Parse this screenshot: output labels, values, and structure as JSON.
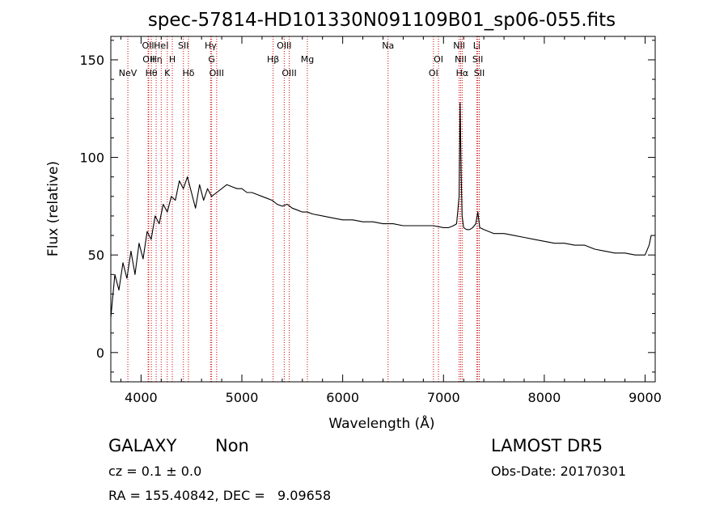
{
  "chart_data": {
    "type": "line",
    "title": "spec-57814-HD101330N091109B01_sp06-055.fits",
    "xlabel": "Wavelength (Å)",
    "ylabel": "Flux (relative)",
    "xlim": [
      3700,
      9100
    ],
    "ylim": [
      -15,
      162
    ],
    "x_ticks": [
      4000,
      5000,
      6000,
      7000,
      8000,
      9000
    ],
    "y_ticks": [
      0,
      50,
      100,
      150
    ],
    "grid": false,
    "series": [
      {
        "color": "#000000",
        "x": [
          3700,
          3740,
          3780,
          3820,
          3860,
          3900,
          3940,
          3980,
          4020,
          4060,
          4100,
          4140,
          4180,
          4220,
          4260,
          4300,
          4340,
          4380,
          4420,
          4460,
          4500,
          4540,
          4580,
          4620,
          4660,
          4700,
          4750,
          4800,
          4850,
          4900,
          4950,
          5000,
          5050,
          5100,
          5150,
          5200,
          5250,
          5300,
          5350,
          5400,
          5450,
          5500,
          5550,
          5600,
          5650,
          5700,
          5800,
          5900,
          6000,
          6100,
          6200,
          6300,
          6400,
          6500,
          6600,
          6700,
          6800,
          6900,
          7000,
          7050,
          7100,
          7130,
          7155,
          7165,
          7175,
          7185,
          7200,
          7230,
          7260,
          7290,
          7320,
          7340,
          7360,
          7400,
          7500,
          7600,
          7700,
          7800,
          7900,
          8000,
          8100,
          8200,
          8300,
          8400,
          8500,
          8600,
          8700,
          8800,
          8900,
          8950,
          9000,
          9040,
          9060,
          9070
        ],
        "y": [
          18,
          40,
          32,
          46,
          38,
          52,
          40,
          56,
          48,
          62,
          58,
          70,
          66,
          76,
          72,
          80,
          78,
          88,
          84,
          90,
          82,
          74,
          86,
          78,
          84,
          80,
          82,
          84,
          86,
          85,
          84,
          84,
          82,
          82,
          81,
          80,
          79,
          78,
          76,
          75,
          76,
          74,
          73,
          72,
          72,
          71,
          70,
          69,
          68,
          68,
          67,
          67,
          66,
          66,
          65,
          65,
          65,
          65,
          64,
          64,
          65,
          66,
          80,
          128,
          92,
          70,
          64,
          63,
          63,
          64,
          66,
          72,
          64,
          63,
          61,
          61,
          60,
          59,
          58,
          57,
          56,
          56,
          55,
          55,
          53,
          52,
          51,
          51,
          50,
          50,
          50,
          55,
          60,
          60
        ]
      }
    ],
    "lines": [
      {
        "w": 3869,
        "label": "NeV",
        "row": 2
      },
      {
        "w": 4070,
        "label": "OII",
        "row": 0
      },
      {
        "w": 4076,
        "label": "OII",
        "row": 1
      },
      {
        "w": 4102,
        "label": "Hθ",
        "row": 2
      },
      {
        "w": 4150,
        "label": "Hη",
        "row": 1
      },
      {
        "w": 4200,
        "label": "HeI",
        "row": 0
      },
      {
        "w": 4260,
        "label": "K",
        "row": 2
      },
      {
        "w": 4310,
        "label": "H",
        "row": 1
      },
      {
        "w": 4420,
        "label": "SII",
        "row": 0
      },
      {
        "w": 4470,
        "label": "Hδ",
        "row": 2
      },
      {
        "w": 4690,
        "label": "Hγ",
        "row": 0
      },
      {
        "w": 4700,
        "label": "G",
        "row": 1
      },
      {
        "w": 4750,
        "label": "OIII",
        "row": 2
      },
      {
        "w": 5310,
        "label": "Hβ",
        "row": 1
      },
      {
        "w": 5420,
        "label": "OIII",
        "row": 0
      },
      {
        "w": 5470,
        "label": "OIII",
        "row": 2
      },
      {
        "w": 5650,
        "label": "Mg",
        "row": 1
      },
      {
        "w": 6450,
        "label": "Na",
        "row": 0
      },
      {
        "w": 6900,
        "label": "OI",
        "row": 2
      },
      {
        "w": 6950,
        "label": "OI",
        "row": 1
      },
      {
        "w": 7155,
        "label": "NII",
        "row": 0
      },
      {
        "w": 7170,
        "label": "NII",
        "row": 1
      },
      {
        "w": 7185,
        "label": "Hα",
        "row": 2
      },
      {
        "w": 7330,
        "label": "Li",
        "row": 0
      },
      {
        "w": 7340,
        "label": "SII",
        "row": 1
      },
      {
        "w": 7355,
        "label": "SII",
        "row": 2
      }
    ]
  },
  "info": {
    "obj_class": "GALAXY",
    "obj_subclass": "Non",
    "survey": "LAMOST DR5",
    "cz": "cz = 0.1 ± 0.0",
    "obs_date": "Obs-Date: 20170301",
    "radec": "RA = 155.40842, DEC =   9.09658"
  }
}
